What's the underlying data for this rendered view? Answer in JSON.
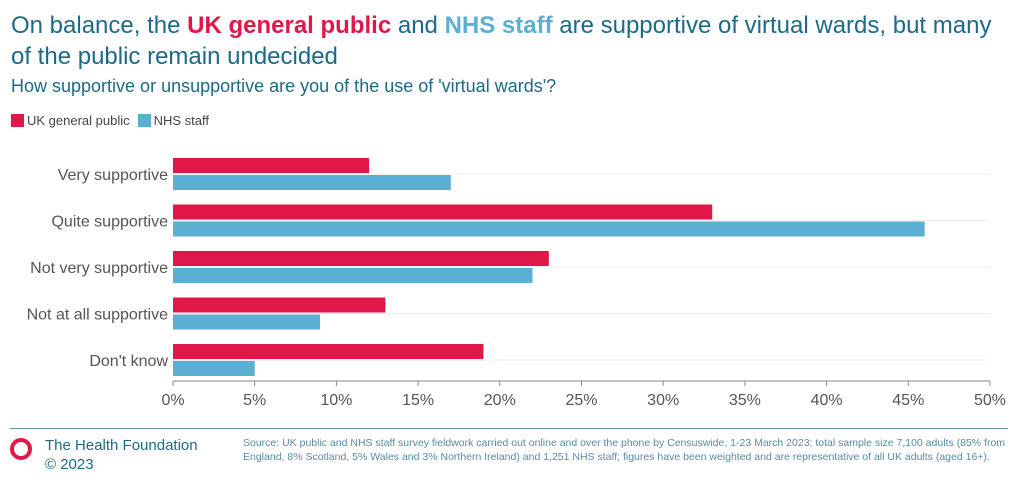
{
  "title": {
    "pre": "On balance, the ",
    "hl1": "UK general public",
    "mid": " and ",
    "hl2": "NHS staff",
    "post": " are supportive of virtual wards, but many of the public remain undecided"
  },
  "subtitle": "How supportive or unsupportive are you of the use of 'virtual wards'?",
  "colors": {
    "uk": "#e0184a",
    "nhs": "#5bafd3",
    "title": "#1d6a86"
  },
  "chart_data": {
    "type": "bar",
    "orientation": "horizontal",
    "categories": [
      "Very supportive",
      "Quite supportive",
      "Not very supportive",
      "Not at all supportive",
      "Don't know"
    ],
    "series": [
      {
        "name": "UK general public",
        "values": [
          12,
          33,
          23,
          13,
          19
        ]
      },
      {
        "name": "NHS staff",
        "values": [
          17,
          46,
          22,
          9,
          5
        ]
      }
    ],
    "xlim": [
      0,
      50
    ],
    "xticks": [
      "0%",
      "5%",
      "10%",
      "15%",
      "20%",
      "25%",
      "30%",
      "35%",
      "40%",
      "45%",
      "50%"
    ],
    "legend": "top-left",
    "grid": true
  },
  "footer": {
    "brand": "The Health Foundation",
    "copyright": "© 2023",
    "source": "Source: UK public and NHS staff survey fieldwork carried out online and over the phone by Censuswide, 1-23 March 2023; total sample size 7,100 adults (85% from England, 8% Scotland, 5% Wales and 3% Northern Ireland) and 1,251 NHS staff; figures have been weighted and are representative of all UK adults (aged 16+)."
  }
}
